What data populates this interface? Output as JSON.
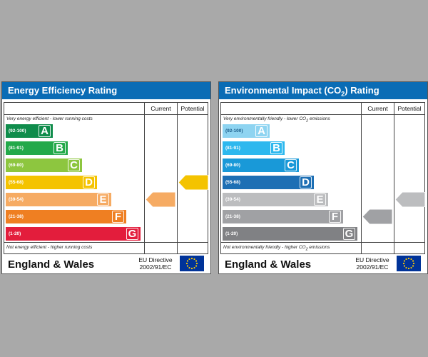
{
  "colors": {
    "background": "#a9a9a9",
    "title_bar": "#0a6cb5",
    "eu_flag": "#003399",
    "eu_star": "#ffcc00"
  },
  "panels": [
    {
      "title": "Energy Efficiency Rating",
      "col_current": "Current",
      "col_potential": "Potential",
      "top_note": "Very energy efficient - lower running costs",
      "bottom_note": "Not energy efficient - higher running costs",
      "region": "England & Wales",
      "directive_line1": "EU Directive",
      "directive_line2": "2002/91/EC",
      "bands": [
        {
          "range": "(92-100)",
          "letter": "A",
          "color": "#0f8c4b"
        },
        {
          "range": "(81-91)",
          "letter": "B",
          "color": "#23a94a"
        },
        {
          "range": "(69-80)",
          "letter": "C",
          "color": "#8dc63f"
        },
        {
          "range": "(55-68)",
          "letter": "D",
          "color": "#f4c300"
        },
        {
          "range": "(39-54)",
          "letter": "E",
          "color": "#f6ab63"
        },
        {
          "range": "(21-38)",
          "letter": "F",
          "color": "#ef7f22"
        },
        {
          "range": "(1-20)",
          "letter": "G",
          "color": "#e31d3c"
        }
      ],
      "current": {
        "value": "49",
        "band_index": 4,
        "color": "#f6ab63"
      },
      "potential": {
        "value": "66",
        "band_index": 3,
        "color": "#f4c300"
      }
    },
    {
      "title_pre": "Environmental Impact (CO",
      "title_sub": "2",
      "title_post": ") Rating",
      "col_current": "Current",
      "col_potential": "Potential",
      "top_note_pre": "Very environmentally friendly - lower CO",
      "top_note_sub": "2",
      "top_note_post": " emissions",
      "bottom_note_pre": "Not environmentally friendly - higher CO",
      "bottom_note_sub": "2",
      "bottom_note_post": " emissions",
      "region": "England & Wales",
      "directive_line1": "EU Directive",
      "directive_line2": "2002/91/EC",
      "bands": [
        {
          "range": "(92-100)",
          "letter": "A",
          "color": "#8ed4f1"
        },
        {
          "range": "(81-91)",
          "letter": "B",
          "color": "#2eb8ee"
        },
        {
          "range": "(69-80)",
          "letter": "C",
          "color": "#1999d8"
        },
        {
          "range": "(55-68)",
          "letter": "D",
          "color": "#1d6fb4"
        },
        {
          "range": "(39-54)",
          "letter": "E",
          "color": "#bcbdbf"
        },
        {
          "range": "(21-38)",
          "letter": "F",
          "color": "#a0a1a4"
        },
        {
          "range": "(1-20)",
          "letter": "G",
          "color": "#808184"
        }
      ],
      "current": {
        "value": "33",
        "band_index": 5,
        "color": "#a0a1a4"
      },
      "potential": {
        "value": "43",
        "band_index": 4,
        "color": "#bcbdbf"
      }
    }
  ],
  "chart_data": [
    {
      "type": "bar",
      "title": "Energy Efficiency Rating",
      "categories": [
        "A",
        "B",
        "C",
        "D",
        "E",
        "F",
        "G"
      ],
      "category_ranges": [
        "(92-100)",
        "(81-91)",
        "(69-80)",
        "(55-68)",
        "(39-54)",
        "(21-38)",
        "(1-20)"
      ],
      "series": [
        {
          "name": "Current",
          "value": 49,
          "band": "E"
        },
        {
          "name": "Potential",
          "value": 66,
          "band": "D"
        }
      ]
    },
    {
      "type": "bar",
      "title": "Environmental Impact (CO2) Rating",
      "categories": [
        "A",
        "B",
        "C",
        "D",
        "E",
        "F",
        "G"
      ],
      "category_ranges": [
        "(92-100)",
        "(81-91)",
        "(69-80)",
        "(55-68)",
        "(39-54)",
        "(21-38)",
        "(1-20)"
      ],
      "series": [
        {
          "name": "Current",
          "value": 33,
          "band": "F"
        },
        {
          "name": "Potential",
          "value": 43,
          "band": "E"
        }
      ]
    }
  ]
}
